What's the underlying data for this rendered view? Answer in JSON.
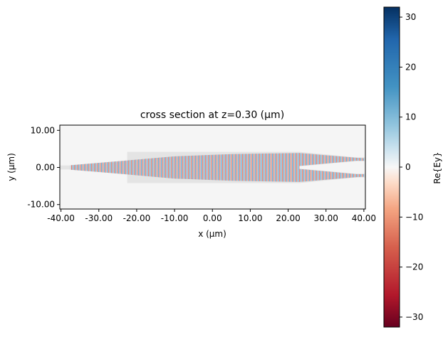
{
  "chart_data": {
    "type": "heatmap",
    "title": "cross section at z=0.30 (μm)",
    "xlabel": "x (μm)",
    "ylabel": "y (μm)",
    "xlim": [
      -40.3,
      40.4
    ],
    "ylim": [
      -11.2,
      11.4
    ],
    "xticks": [
      -40,
      -30,
      -20,
      -10,
      0,
      10,
      20,
      30,
      40
    ],
    "xtick_labels": [
      "-40.00",
      "-30.00",
      "-20.00",
      "-10.00",
      "0.00",
      "10.00",
      "20.00",
      "30.00",
      "40.00"
    ],
    "yticks": [
      10,
      0,
      -10
    ],
    "ytick_labels": [
      "10.00",
      "0.00",
      "-10.00"
    ],
    "field": "Re{Ey}",
    "colormap": "RdBu",
    "clim": [
      -32,
      32
    ],
    "colorbar": {
      "label": "Re{Ey}",
      "ticks": [
        30,
        20,
        10,
        0,
        -10,
        -20,
        -30
      ],
      "tick_labels": [
        "30",
        "20",
        "10",
        "0",
        "−10",
        "−20",
        "−30"
      ]
    },
    "colors": {
      "positive": "#2166ac",
      "negative": "#b2182b",
      "background": "#f5f5f5",
      "structure": "#e4e4e4"
    }
  }
}
